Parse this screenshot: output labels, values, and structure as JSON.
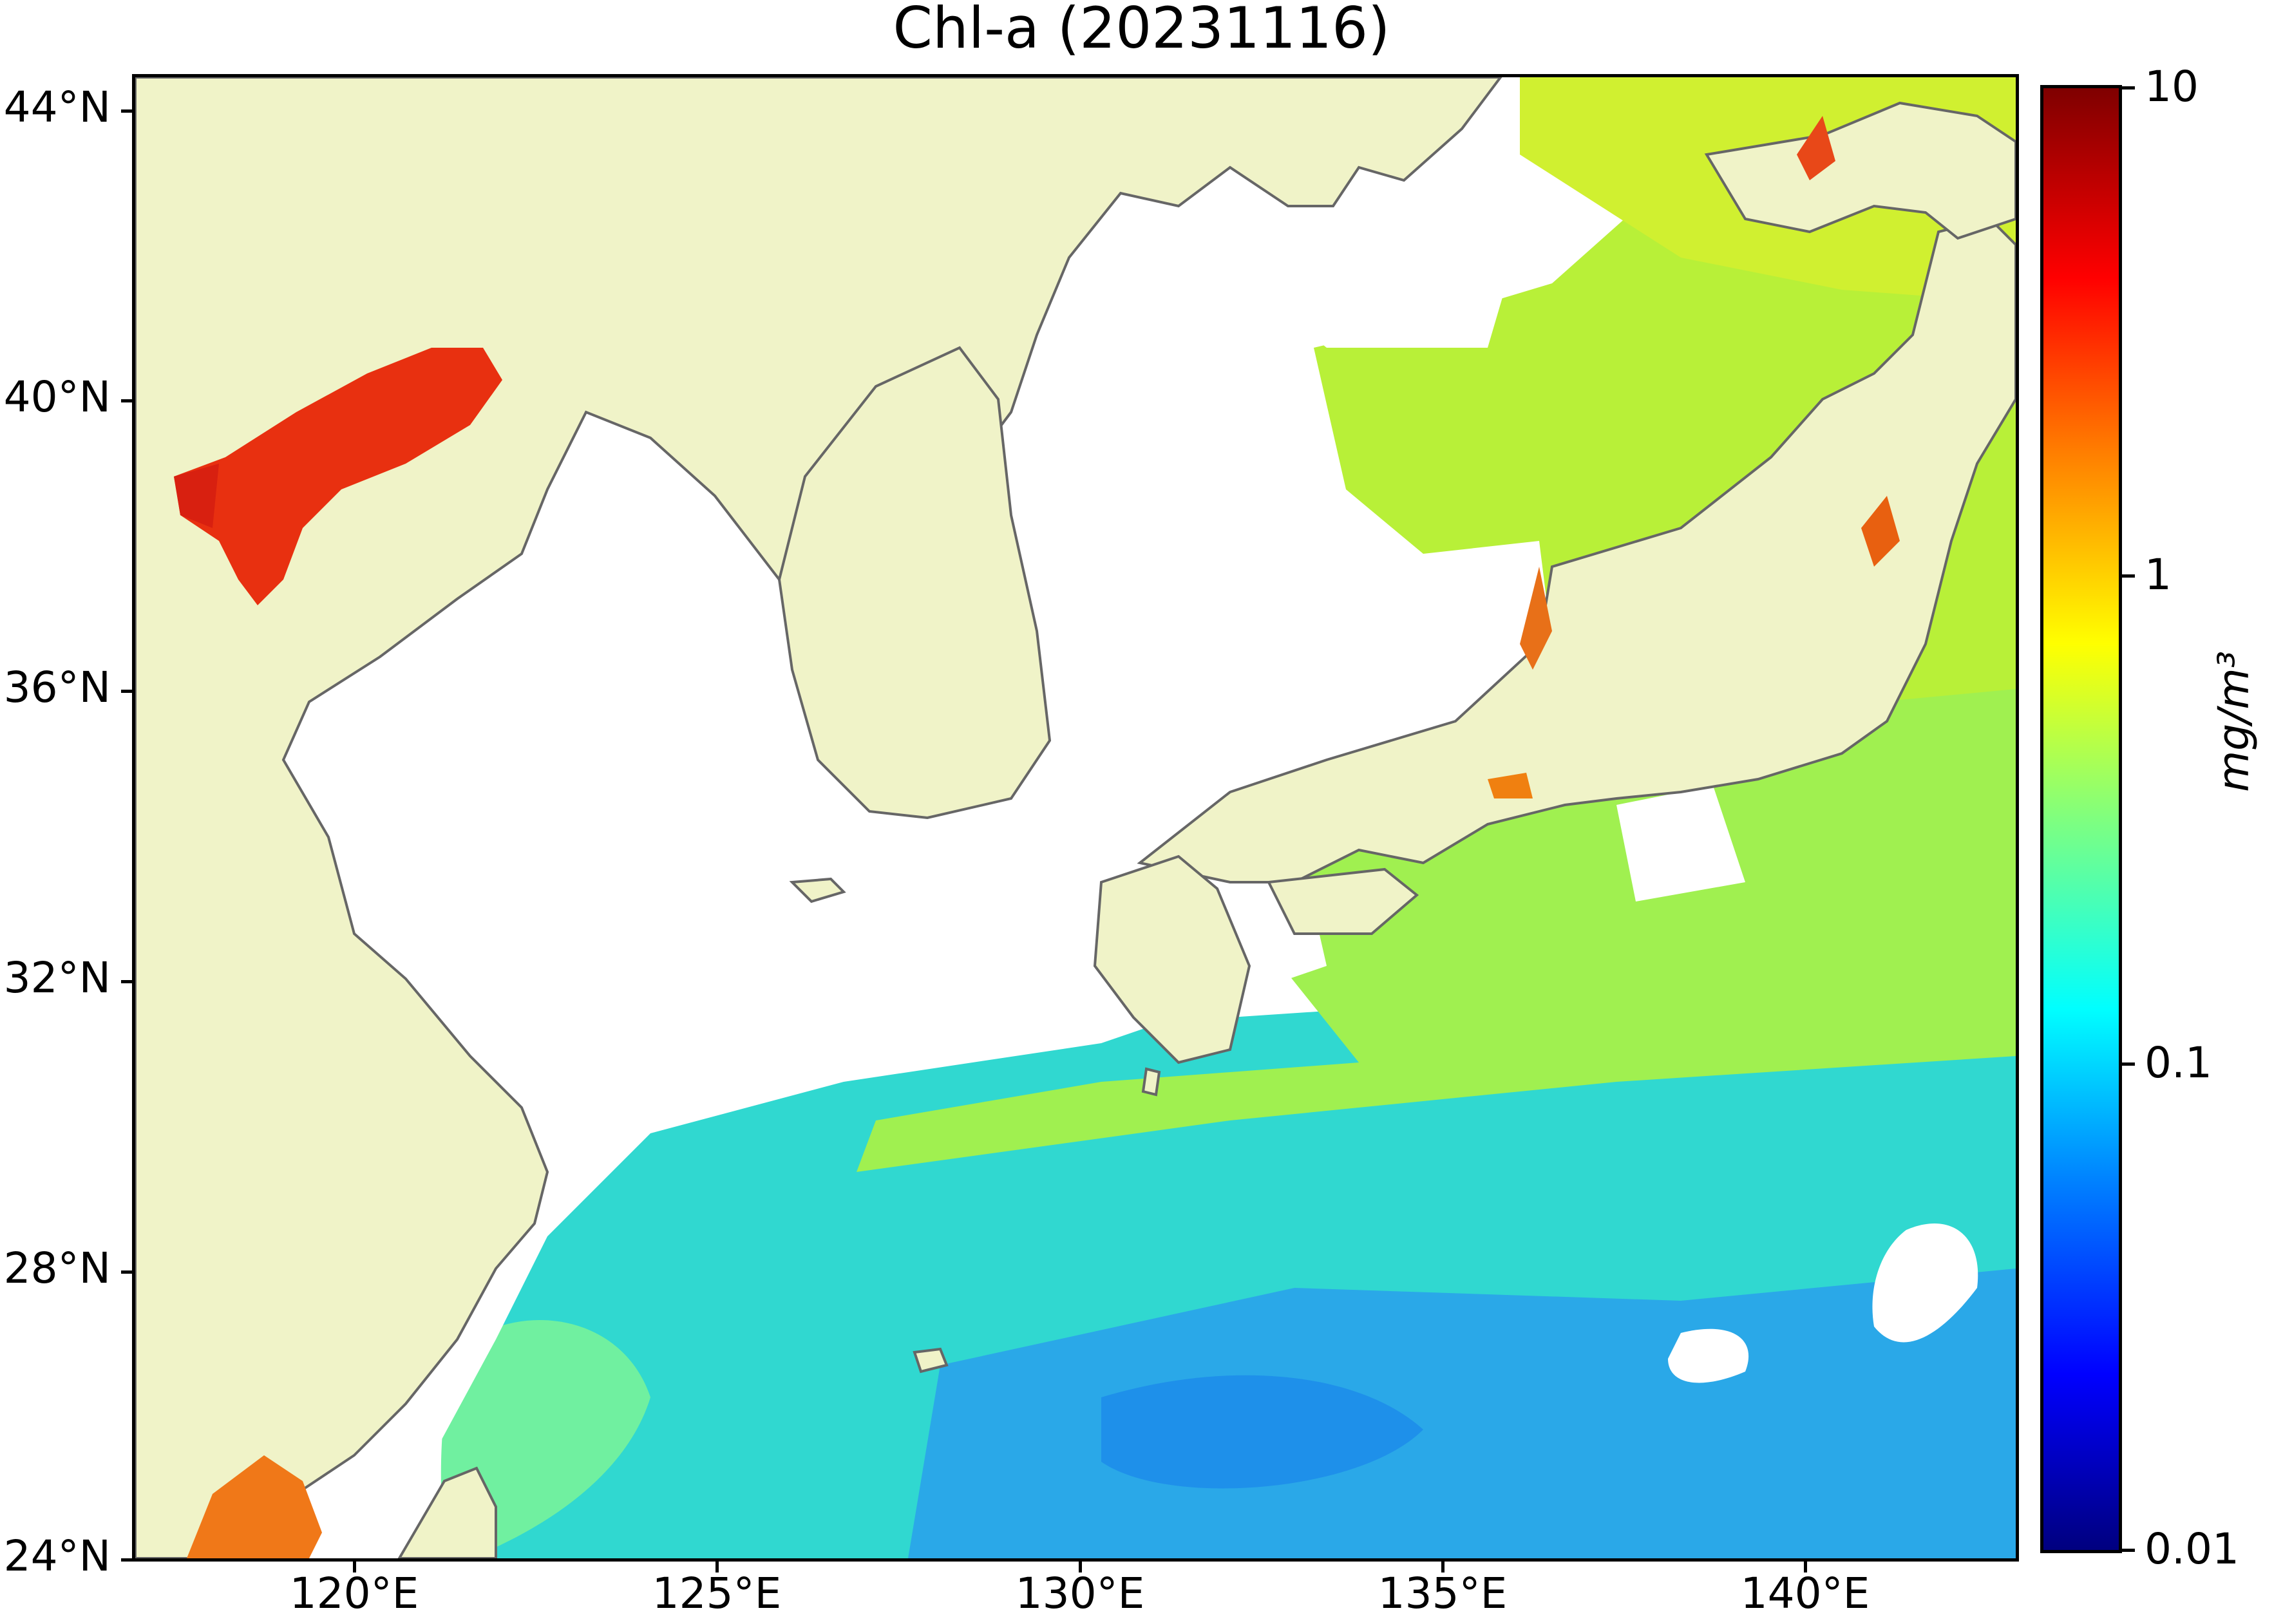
{
  "title": "Chl-a (20231116)",
  "latitude_labels": [
    "44°N",
    "40°N",
    "36°N",
    "32°N",
    "28°N",
    "24°N"
  ],
  "longitude_labels": [
    "120°E",
    "125°E",
    "130°E",
    "135°E",
    "140°E"
  ],
  "colorbar": {
    "tick_labels": [
      "10",
      "1",
      "0.1",
      "0.01"
    ],
    "unit": "mg/m³",
    "colormap": "jet",
    "scale": "log",
    "range": [
      0.01,
      10
    ]
  },
  "colors": {
    "land": "#f0f3c8",
    "coastline": "#666666",
    "no_data": "#ffffff",
    "high_chl": "#e83010",
    "mid_chl": "#b4f040",
    "low_chl": "#30d8d0",
    "lowest_chl": "#2aa8e8"
  },
  "map_extent": {
    "lon": [
      117,
      143
    ],
    "lat": [
      24,
      44.5
    ]
  }
}
